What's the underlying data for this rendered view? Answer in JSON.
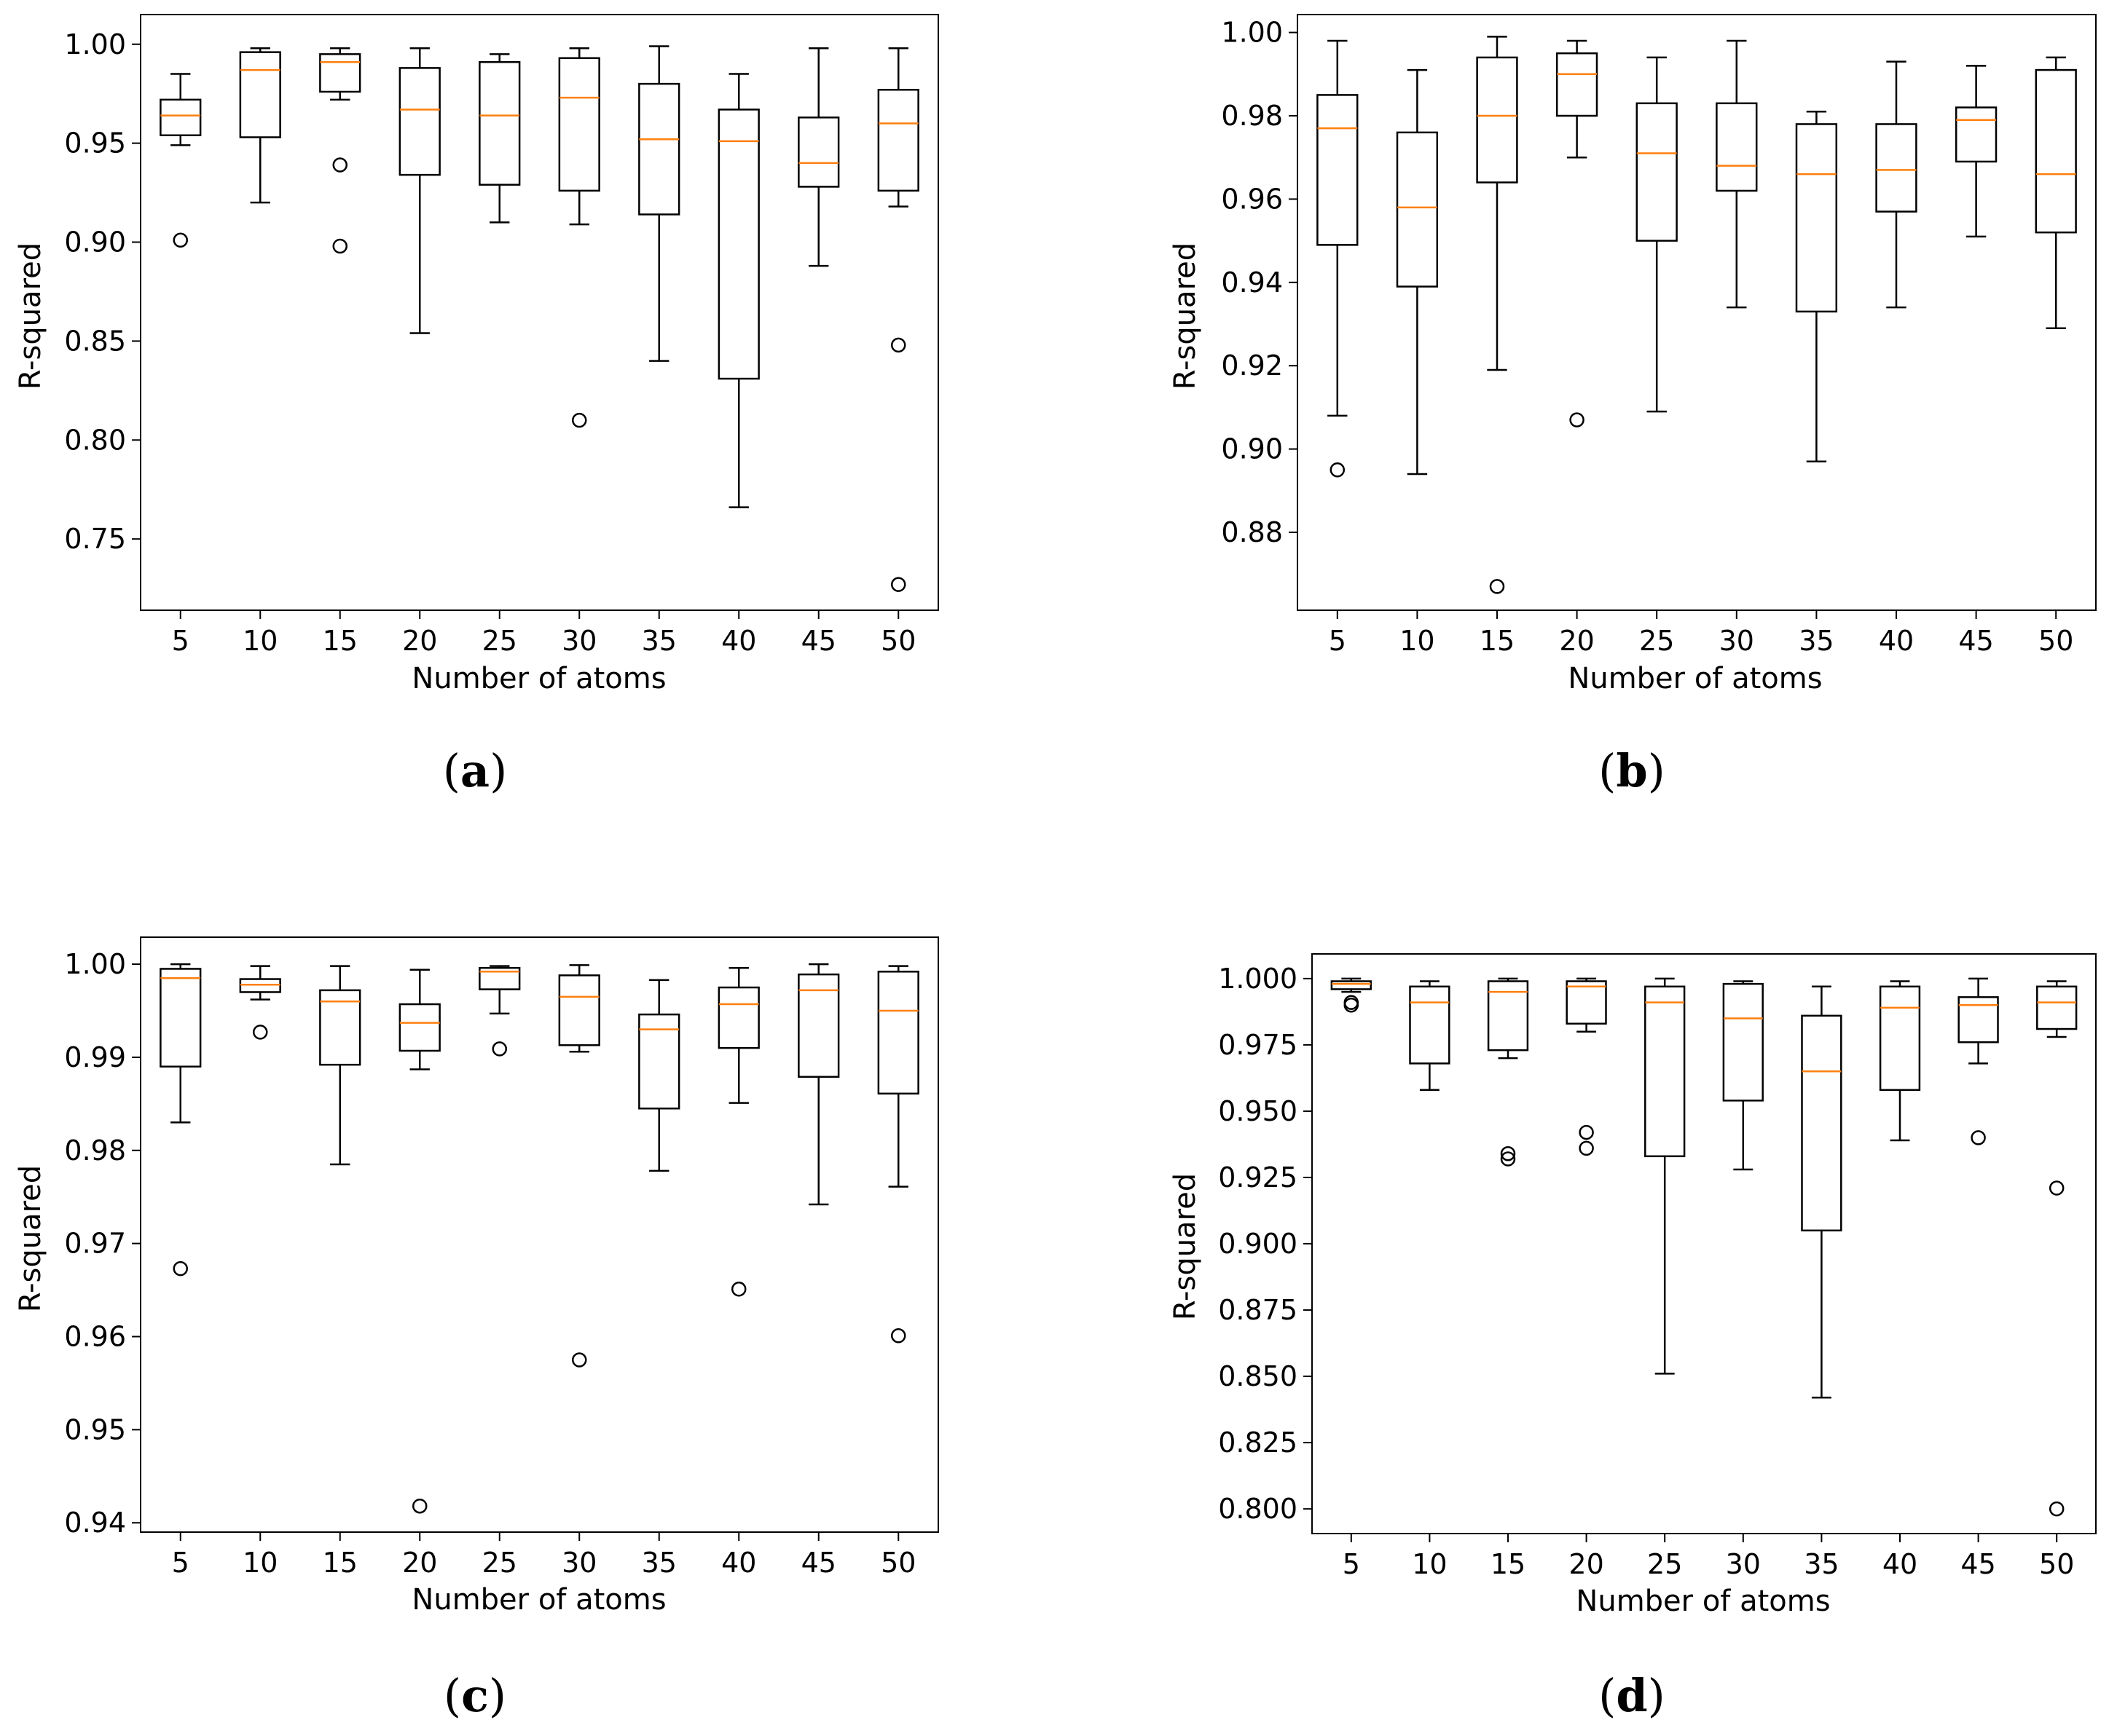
{
  "figure": {
    "colors": {
      "box": "#000000",
      "median": "#ff7f0e",
      "flier": "#000000",
      "background": "#ffffff"
    }
  },
  "chart_data": [
    {
      "type": "box",
      "caption": "(a)",
      "caption_letter": "a",
      "xlabel": "Number of atoms",
      "ylabel": "R-squared",
      "categories": [
        "5",
        "10",
        "15",
        "20",
        "25",
        "30",
        "35",
        "40",
        "45",
        "50"
      ],
      "ylim": [
        0.714,
        1.015
      ],
      "yticks": [
        0.75,
        0.8,
        0.85,
        0.9,
        0.95,
        1.0
      ],
      "ytick_labels": [
        "0.75",
        "0.80",
        "0.85",
        "0.90",
        "0.95",
        "1.00"
      ],
      "boxes": [
        {
          "whislo": 0.949,
          "q1": 0.954,
          "med": 0.964,
          "q3": 0.972,
          "whishi": 0.985,
          "fliers": [
            0.901
          ]
        },
        {
          "whislo": 0.92,
          "q1": 0.953,
          "med": 0.987,
          "q3": 0.996,
          "whishi": 0.998,
          "fliers": []
        },
        {
          "whislo": 0.972,
          "q1": 0.976,
          "med": 0.991,
          "q3": 0.995,
          "whishi": 0.998,
          "fliers": [
            0.939,
            0.898
          ]
        },
        {
          "whislo": 0.854,
          "q1": 0.934,
          "med": 0.967,
          "q3": 0.988,
          "whishi": 0.998,
          "fliers": []
        },
        {
          "whislo": 0.91,
          "q1": 0.929,
          "med": 0.964,
          "q3": 0.991,
          "whishi": 0.995,
          "fliers": []
        },
        {
          "whislo": 0.909,
          "q1": 0.926,
          "med": 0.973,
          "q3": 0.993,
          "whishi": 0.998,
          "fliers": [
            0.81
          ]
        },
        {
          "whislo": 0.84,
          "q1": 0.914,
          "med": 0.952,
          "q3": 0.98,
          "whishi": 0.999,
          "fliers": []
        },
        {
          "whislo": 0.766,
          "q1": 0.831,
          "med": 0.951,
          "q3": 0.967,
          "whishi": 0.985,
          "fliers": []
        },
        {
          "whislo": 0.888,
          "q1": 0.928,
          "med": 0.94,
          "q3": 0.963,
          "whishi": 0.998,
          "fliers": []
        },
        {
          "whislo": 0.918,
          "q1": 0.926,
          "med": 0.96,
          "q3": 0.977,
          "whishi": 0.998,
          "fliers": [
            0.848,
            0.727
          ]
        }
      ]
    },
    {
      "type": "box",
      "caption": "(b)",
      "caption_letter": "b",
      "xlabel": "Number of atoms",
      "ylabel": "R-squared",
      "categories": [
        "5",
        "10",
        "15",
        "20",
        "25",
        "30",
        "35",
        "40",
        "45",
        "50"
      ],
      "ylim": [
        0.8613,
        1.0043
      ],
      "yticks": [
        0.88,
        0.9,
        0.92,
        0.94,
        0.96,
        0.98,
        1.0
      ],
      "ytick_labels": [
        "0.88",
        "0.90",
        "0.92",
        "0.94",
        "0.96",
        "0.98",
        "1.00"
      ],
      "boxes": [
        {
          "whislo": 0.908,
          "q1": 0.949,
          "med": 0.977,
          "q3": 0.985,
          "whishi": 0.998,
          "fliers": [
            0.895
          ]
        },
        {
          "whislo": 0.894,
          "q1": 0.939,
          "med": 0.958,
          "q3": 0.976,
          "whishi": 0.991,
          "fliers": []
        },
        {
          "whislo": 0.919,
          "q1": 0.964,
          "med": 0.98,
          "q3": 0.994,
          "whishi": 0.999,
          "fliers": [
            0.867
          ]
        },
        {
          "whislo": 0.97,
          "q1": 0.98,
          "med": 0.99,
          "q3": 0.995,
          "whishi": 0.998,
          "fliers": [
            0.907
          ]
        },
        {
          "whislo": 0.909,
          "q1": 0.95,
          "med": 0.971,
          "q3": 0.983,
          "whishi": 0.994,
          "fliers": []
        },
        {
          "whislo": 0.934,
          "q1": 0.962,
          "med": 0.968,
          "q3": 0.983,
          "whishi": 0.998,
          "fliers": []
        },
        {
          "whislo": 0.897,
          "q1": 0.933,
          "med": 0.966,
          "q3": 0.978,
          "whishi": 0.981,
          "fliers": []
        },
        {
          "whislo": 0.934,
          "q1": 0.957,
          "med": 0.967,
          "q3": 0.978,
          "whishi": 0.993,
          "fliers": []
        },
        {
          "whislo": 0.951,
          "q1": 0.969,
          "med": 0.979,
          "q3": 0.982,
          "whishi": 0.992,
          "fliers": []
        },
        {
          "whislo": 0.929,
          "q1": 0.952,
          "med": 0.966,
          "q3": 0.991,
          "whishi": 0.994,
          "fliers": []
        }
      ]
    },
    {
      "type": "box",
      "caption": "(c)",
      "caption_letter": "c",
      "xlabel": "Number of atoms",
      "ylabel": "R-squared",
      "categories": [
        "5",
        "10",
        "15",
        "20",
        "25",
        "30",
        "35",
        "40",
        "45",
        "50"
      ],
      "ylim": [
        0.939,
        1.0029
      ],
      "yticks": [
        0.94,
        0.95,
        0.96,
        0.97,
        0.98,
        0.99,
        1.0
      ],
      "ytick_labels": [
        "0.94",
        "0.95",
        "0.96",
        "0.97",
        "0.98",
        "0.99",
        "1.00"
      ],
      "boxes": [
        {
          "whislo": 0.983,
          "q1": 0.989,
          "med": 0.9985,
          "q3": 0.9995,
          "whishi": 1.0,
          "fliers": [
            0.9673
          ]
        },
        {
          "whislo": 0.9962,
          "q1": 0.997,
          "med": 0.9978,
          "q3": 0.9984,
          "whishi": 0.9998,
          "fliers": [
            0.9927
          ]
        },
        {
          "whislo": 0.9785,
          "q1": 0.9892,
          "med": 0.996,
          "q3": 0.9972,
          "whishi": 0.9998,
          "fliers": []
        },
        {
          "whislo": 0.9887,
          "q1": 0.9907,
          "med": 0.9937,
          "q3": 0.9957,
          "whishi": 0.9994,
          "fliers": [
            0.9418
          ]
        },
        {
          "whislo": 0.9947,
          "q1": 0.9973,
          "med": 0.9992,
          "q3": 0.9996,
          "whishi": 0.9998,
          "fliers": [
            0.9909
          ]
        },
        {
          "whislo": 0.9906,
          "q1": 0.9913,
          "med": 0.9965,
          "q3": 0.9988,
          "whishi": 0.9999,
          "fliers": [
            0.9575
          ]
        },
        {
          "whislo": 0.9778,
          "q1": 0.9845,
          "med": 0.993,
          "q3": 0.9946,
          "whishi": 0.9983,
          "fliers": []
        },
        {
          "whislo": 0.9851,
          "q1": 0.991,
          "med": 0.9957,
          "q3": 0.9975,
          "whishi": 0.9996,
          "fliers": [
            0.9651
          ]
        },
        {
          "whislo": 0.9742,
          "q1": 0.9879,
          "med": 0.9972,
          "q3": 0.9989,
          "whishi": 1.0,
          "fliers": []
        },
        {
          "whislo": 0.9761,
          "q1": 0.9861,
          "med": 0.995,
          "q3": 0.9992,
          "whishi": 0.9998,
          "fliers": [
            0.9601
          ]
        }
      ]
    },
    {
      "type": "box",
      "caption": "(d)",
      "caption_letter": "d",
      "xlabel": "Number of atoms",
      "ylabel": "R-squared",
      "categories": [
        "5",
        "10",
        "15",
        "20",
        "25",
        "30",
        "35",
        "40",
        "45",
        "50"
      ],
      "ylim": [
        0.7907,
        1.0093
      ],
      "yticks": [
        0.8,
        0.825,
        0.85,
        0.875,
        0.9,
        0.925,
        0.95,
        0.975,
        1.0
      ],
      "ytick_labels": [
        "0.800",
        "0.825",
        "0.850",
        "0.875",
        "0.900",
        "0.925",
        "0.950",
        "0.975",
        "1.000"
      ],
      "boxes": [
        {
          "whislo": 0.995,
          "q1": 0.996,
          "med": 0.998,
          "q3": 0.999,
          "whishi": 1.0,
          "fliers": [
            0.991,
            0.99
          ]
        },
        {
          "whislo": 0.958,
          "q1": 0.968,
          "med": 0.991,
          "q3": 0.997,
          "whishi": 0.999,
          "fliers": []
        },
        {
          "whislo": 0.97,
          "q1": 0.973,
          "med": 0.995,
          "q3": 0.999,
          "whishi": 1.0,
          "fliers": [
            0.934,
            0.932
          ]
        },
        {
          "whislo": 0.98,
          "q1": 0.983,
          "med": 0.997,
          "q3": 0.999,
          "whishi": 1.0,
          "fliers": [
            0.942,
            0.936
          ]
        },
        {
          "whislo": 0.851,
          "q1": 0.933,
          "med": 0.991,
          "q3": 0.997,
          "whishi": 1.0,
          "fliers": []
        },
        {
          "whislo": 0.928,
          "q1": 0.954,
          "med": 0.985,
          "q3": 0.998,
          "whishi": 0.999,
          "fliers": []
        },
        {
          "whislo": 0.842,
          "q1": 0.905,
          "med": 0.965,
          "q3": 0.986,
          "whishi": 0.997,
          "fliers": []
        },
        {
          "whislo": 0.939,
          "q1": 0.958,
          "med": 0.989,
          "q3": 0.997,
          "whishi": 0.999,
          "fliers": []
        },
        {
          "whislo": 0.968,
          "q1": 0.976,
          "med": 0.99,
          "q3": 0.993,
          "whishi": 1.0,
          "fliers": [
            0.94
          ]
        },
        {
          "whislo": 0.978,
          "q1": 0.981,
          "med": 0.991,
          "q3": 0.997,
          "whishi": 0.999,
          "fliers": [
            0.921,
            0.8
          ]
        }
      ]
    }
  ]
}
